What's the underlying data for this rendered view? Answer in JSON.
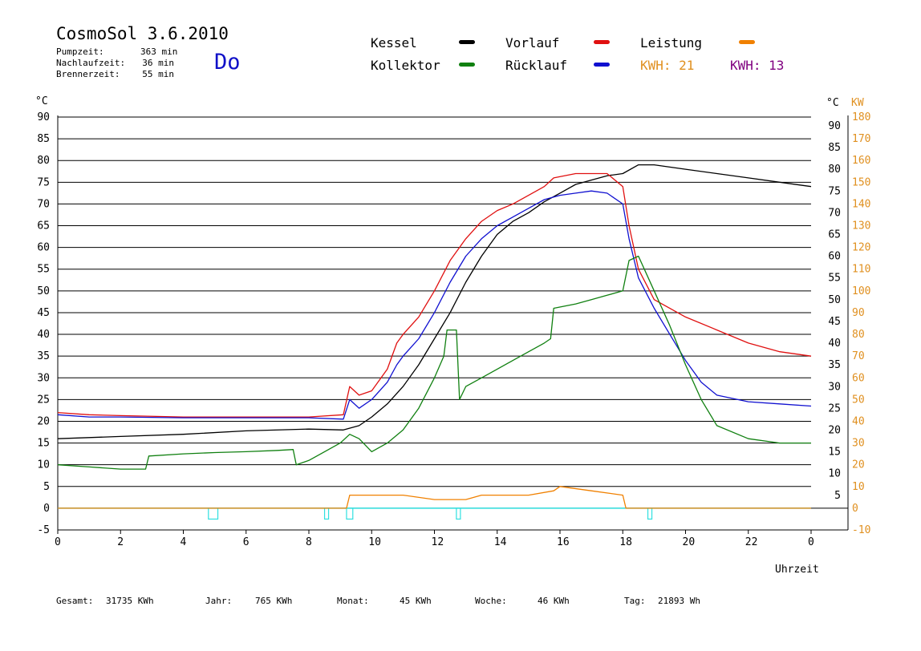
{
  "header": {
    "title": "CosmoSol 3.6.2010",
    "day": "Do",
    "stats": [
      {
        "label": "Pumpzeit:",
        "value": "363 min"
      },
      {
        "label": "Nachlaufzeit:",
        "value": "36 min"
      },
      {
        "label": "Brennerzeit:",
        "value": "55 min"
      }
    ]
  },
  "legend": [
    {
      "label": "Kessel",
      "color": "#000000"
    },
    {
      "label": "Vorlauf",
      "color": "#e01010"
    },
    {
      "label": "Leistung",
      "color": "#f08000"
    },
    {
      "label": "Kollektor",
      "color": "#108010"
    },
    {
      "label": "Rücklauf",
      "color": "#1010d0"
    }
  ],
  "kwh": [
    {
      "label": "KWH:",
      "value": "21",
      "color": "#e09020"
    },
    {
      "label": "KWH:",
      "value": "13",
      "color": "#800080"
    }
  ],
  "footer": [
    {
      "label": "Gesamt:",
      "value": "31735 KWh"
    },
    {
      "label": "Jahr:",
      "value": "765 KWh"
    },
    {
      "label": "Monat:",
      "value": "45 KWh"
    },
    {
      "label": "Woche:",
      "value": "46 KWh"
    },
    {
      "label": "Tag:",
      "value": "21893 Wh"
    }
  ],
  "chart_data": {
    "type": "line",
    "xlabel": "Uhrzeit",
    "ylabel_left": "°C",
    "ylabel_right_1": "°C",
    "ylabel_right_2": "KW",
    "x_ticks": [
      "0",
      "2",
      "4",
      "6",
      "8",
      "10",
      "12",
      "14",
      "16",
      "18",
      "20",
      "22",
      "0"
    ],
    "xlim": [
      0,
      24
    ],
    "ylim": [
      -5,
      90
    ],
    "y_ticks_left": [
      "90",
      "85",
      "80",
      "75",
      "70",
      "65",
      "60",
      "55",
      "50",
      "45",
      "40",
      "35",
      "30",
      "25",
      "20",
      "15",
      "10",
      "5",
      "0",
      "-5"
    ],
    "y_ticks_right": [
      "90",
      "85",
      "80",
      "75",
      "70",
      "65",
      "60",
      "55",
      "50",
      "45",
      "40",
      "35",
      "30",
      "25",
      "20",
      "15",
      "10",
      "5"
    ],
    "y_ticks_kw": [
      "180",
      "170",
      "160",
      "150",
      "140",
      "130",
      "120",
      "110",
      "100",
      "90",
      "80",
      "70",
      "60",
      "50",
      "40",
      "30",
      "20",
      "10",
      "0",
      "-10"
    ],
    "grid": true,
    "series": [
      {
        "name": "Kessel",
        "color": "#000000",
        "x": [
          0,
          2,
          4,
          6,
          8,
          9.1,
          9.6,
          10,
          10.5,
          11,
          11.5,
          12,
          12.5,
          13,
          13.5,
          14,
          14.5,
          15,
          15.5,
          16,
          16.5,
          17,
          17.5,
          18,
          18.5,
          19,
          20,
          21,
          22,
          23,
          24
        ],
        "y": [
          16,
          16.5,
          17,
          17.8,
          18.2,
          18,
          19,
          21,
          24,
          28,
          33,
          39,
          45,
          52,
          58,
          63,
          66,
          68,
          70.5,
          72.5,
          74.5,
          75.5,
          76.5,
          77,
          79,
          79,
          78,
          77,
          76,
          75,
          74
        ]
      },
      {
        "name": "Vorlauf",
        "color": "#e01010",
        "x": [
          0,
          1,
          2,
          4,
          6,
          8,
          9.1,
          9.3,
          9.6,
          10,
          10.5,
          10.8,
          11,
          11.5,
          12,
          12.5,
          13,
          13.5,
          14,
          14.5,
          15,
          15.5,
          15.8,
          16.5,
          17.5,
          18,
          18.2,
          18.5,
          19,
          20,
          21,
          22,
          23,
          24
        ],
        "y": [
          22,
          21.5,
          21.3,
          21,
          21,
          21,
          21.5,
          28,
          26,
          27,
          32,
          38,
          40,
          44,
          50,
          57,
          62,
          66,
          68.5,
          70,
          72,
          74,
          76,
          77,
          77,
          74,
          65,
          55,
          48,
          44,
          41,
          38,
          36,
          35
        ]
      },
      {
        "name": "Rücklauf",
        "color": "#1010d0",
        "x": [
          0,
          1,
          2,
          4,
          6,
          8,
          9.1,
          9.3,
          9.6,
          10,
          10.5,
          10.8,
          11,
          11.5,
          12,
          12.5,
          13,
          13.5,
          14,
          14.5,
          15,
          15.5,
          16,
          16.5,
          17,
          17.5,
          18,
          18.2,
          18.5,
          19,
          19.5,
          20,
          20.5,
          21,
          22,
          23,
          24
        ],
        "y": [
          21.5,
          21,
          21,
          20.8,
          20.8,
          20.8,
          20.5,
          25,
          23,
          25,
          29,
          33,
          35,
          39,
          45,
          52,
          58,
          62,
          65,
          67,
          69,
          71,
          72,
          72.5,
          73,
          72.5,
          70,
          62,
          53,
          46,
          40,
          34,
          29,
          26,
          24.5,
          24,
          23.5
        ]
      },
      {
        "name": "Kollektor",
        "color": "#108010",
        "x": [
          0,
          1,
          2,
          2.8,
          2.9,
          4,
          5,
          6,
          7,
          7.5,
          7.6,
          8,
          8.5,
          9,
          9.3,
          9.6,
          10,
          10.5,
          11,
          11.5,
          12,
          12.3,
          12.4,
          12.7,
          12.8,
          13,
          13.5,
          14,
          14.5,
          15,
          15.5,
          15.7,
          15.8,
          16.5,
          17,
          17.5,
          18,
          18.2,
          18.5,
          19,
          19.5,
          20,
          20.5,
          21,
          22,
          23,
          24
        ],
        "y": [
          10,
          9.5,
          9,
          9,
          12,
          12.5,
          12.8,
          13,
          13.3,
          13.5,
          10,
          11,
          13,
          15,
          17,
          16,
          13,
          15,
          18,
          23,
          30,
          35,
          41,
          41,
          25,
          28,
          30,
          32,
          34,
          36,
          38,
          39,
          46,
          47,
          48,
          49,
          50,
          57,
          58,
          50,
          42,
          33,
          25,
          19,
          16,
          15,
          15
        ]
      },
      {
        "name": "Leistung",
        "color": "#f08000",
        "x": [
          0,
          9.2,
          9.3,
          10,
          11,
          12,
          13,
          13.5,
          14,
          15,
          15.8,
          16,
          17,
          18,
          18.1,
          24
        ],
        "y": [
          0,
          0,
          3,
          3,
          3,
          2,
          2,
          3,
          3,
          3,
          4,
          5,
          4,
          3,
          0,
          0
        ]
      }
    ],
    "pump_markers": [
      {
        "start": 4.8,
        "end": 5.1
      },
      {
        "start": 8.5,
        "end": 8.6
      },
      {
        "start": 9.2,
        "end": 9.4
      },
      {
        "start": 12.7,
        "end": 12.8
      },
      {
        "start": 18.8,
        "end": 18.9
      }
    ]
  }
}
